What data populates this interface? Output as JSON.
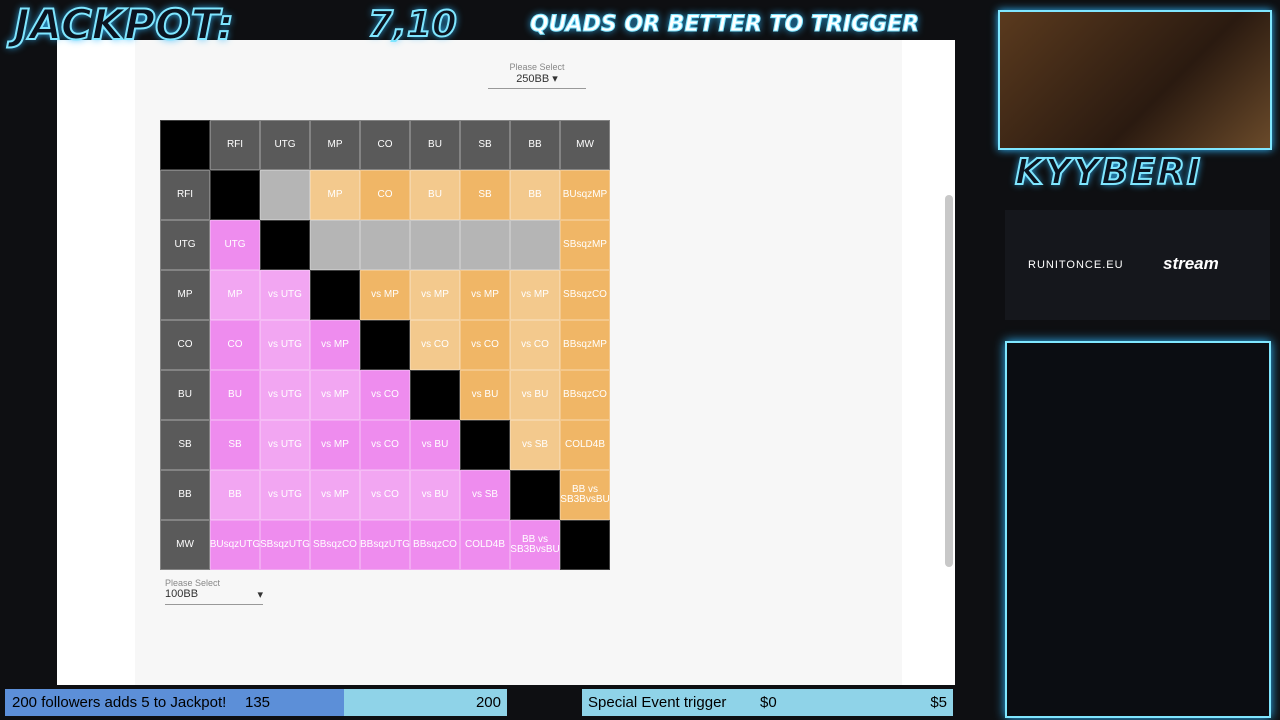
{
  "overlay": {
    "jackpot_label": "JACKPOT:",
    "jackpot_value": "7,10",
    "trigger_text": "QUADS OR BETTER TO TRIGGER",
    "streamer": "KYYBERI",
    "sponsor": "RUNITONCE.EU",
    "sponsor_logo": "stream"
  },
  "top_select": {
    "label": "Please Select",
    "value": "250BB"
  },
  "grid": {
    "headers": [
      "RFI",
      "UTG",
      "MP",
      "CO",
      "BU",
      "SB",
      "BB",
      "MW"
    ],
    "rows": [
      {
        "label": "RFI",
        "cells": [
          null,
          null,
          "MP",
          "CO",
          "BU",
          "SB",
          "BB",
          "BUsqzMP"
        ],
        "fills": [
          "#000000",
          "#b5b5b5",
          "#f3c98d",
          "#f0b666",
          "#f3c98d",
          "#f0b666",
          "#f3c98d",
          "#f0b666"
        ]
      },
      {
        "label": "UTG",
        "cells": [
          "UTG",
          null,
          null,
          null,
          null,
          null,
          null,
          "SBsqzMP"
        ],
        "fills": [
          "#ee8cee",
          "#000000",
          "#b5b5b5",
          "#b5b5b5",
          "#b5b5b5",
          "#b5b5b5",
          "#b5b5b5",
          "#f0b666"
        ]
      },
      {
        "label": "MP",
        "cells": [
          "MP",
          "vs UTG",
          null,
          "vs MP",
          "vs MP",
          "vs MP",
          "vs MP",
          "SBsqzCO"
        ],
        "fills": [
          "#f2a6f2",
          "#f2a6f2",
          "#000000",
          "#f0b666",
          "#f3c98d",
          "#f0b666",
          "#f3c98d",
          "#f0b666"
        ]
      },
      {
        "label": "CO",
        "cells": [
          "CO",
          "vs UTG",
          "vs MP",
          null,
          "vs CO",
          "vs CO",
          "vs CO",
          "BBsqzMP"
        ],
        "fills": [
          "#ee8cee",
          "#f2a6f2",
          "#ee8cee",
          "#000000",
          "#f3c98d",
          "#f0b666",
          "#f3c98d",
          "#f0b666"
        ]
      },
      {
        "label": "BU",
        "cells": [
          "BU",
          "vs UTG",
          "vs MP",
          "vs CO",
          null,
          "vs BU",
          "vs BU",
          "BBsqzCO"
        ],
        "fills": [
          "#ee8cee",
          "#f2a6f2",
          "#f2a6f2",
          "#ee8cee",
          "#000000",
          "#f0b666",
          "#f3c98d",
          "#f0b666"
        ]
      },
      {
        "label": "SB",
        "cells": [
          "SB",
          "vs UTG",
          "vs MP",
          "vs CO",
          "vs BU",
          null,
          "vs SB",
          "COLD4B"
        ],
        "fills": [
          "#ee8cee",
          "#f2a6f2",
          "#ee8cee",
          "#ee8cee",
          "#ee8cee",
          "#000000",
          "#f3c98d",
          "#f0b666"
        ]
      },
      {
        "label": "BB",
        "cells": [
          "BB",
          "vs UTG",
          "vs MP",
          "vs CO",
          "vs BU",
          "vs SB",
          null,
          "BB vs SB3BvsBU"
        ],
        "fills": [
          "#f2a6f2",
          "#f2a6f2",
          "#f2a6f2",
          "#f2a6f2",
          "#f2a6f2",
          "#ee8cee",
          "#000000",
          "#f0b666"
        ]
      },
      {
        "label": "MW",
        "cells": [
          "BUsqzUTG",
          "SBsqzUTG",
          "SBsqzCO",
          "BBsqzUTG",
          "BBsqzCO",
          "COLD4B",
          "BB vs SB3BvsBU",
          null
        ],
        "fills": [
          "#ee8cee",
          "#ee8cee",
          "#ee8cee",
          "#ee8cee",
          "#ee8cee",
          "#ee8cee",
          "#ee8cee",
          "#000000"
        ]
      }
    ]
  },
  "bottom_select": {
    "label": "Please Select",
    "value": "100BB"
  },
  "bottom_bar": {
    "followers": {
      "text": "200 followers adds 5 to Jackpot!",
      "current": 135,
      "goal": 200
    },
    "special": {
      "text": "Special Event trigger",
      "current": "$0",
      "goal": "$5"
    }
  }
}
